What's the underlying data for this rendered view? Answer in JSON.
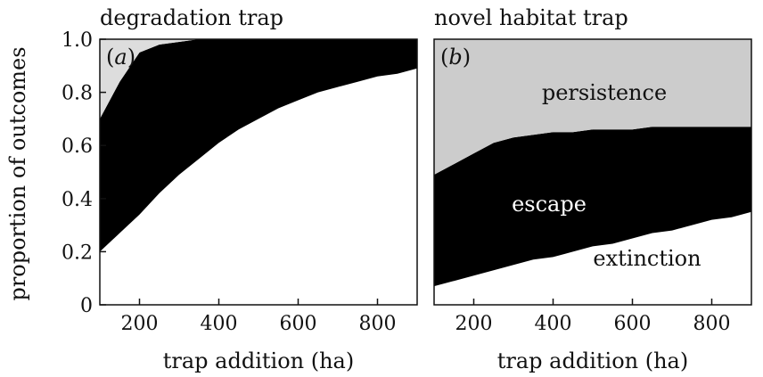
{
  "chart_data": [
    {
      "type": "area",
      "panel_label": "a",
      "title": "degradation trap",
      "xlabel": "trap addition (ha)",
      "ylabel": "proportion of outcomes",
      "xlim": [
        100,
        900
      ],
      "ylim": [
        0,
        1.0
      ],
      "x_ticks": [
        "200",
        "400",
        "600",
        "800"
      ],
      "y_ticks": [
        "0",
        "0.2",
        "0.4",
        "0.6",
        "0.8",
        "1.0"
      ],
      "x": [
        100,
        150,
        200,
        250,
        300,
        350,
        400,
        450,
        500,
        550,
        600,
        650,
        700,
        750,
        800,
        850,
        900
      ],
      "series": [
        {
          "key": "extinction",
          "label": "",
          "color": "#ffffff",
          "values": [
            0.2,
            0.27,
            0.34,
            0.42,
            0.49,
            0.55,
            0.61,
            0.66,
            0.7,
            0.74,
            0.77,
            0.8,
            0.82,
            0.84,
            0.86,
            0.87,
            0.89
          ]
        },
        {
          "key": "escape",
          "label": "",
          "color": "#000000",
          "values": [
            0.5,
            0.57,
            0.61,
            0.56,
            0.5,
            0.45,
            0.39,
            0.34,
            0.3,
            0.26,
            0.23,
            0.2,
            0.18,
            0.16,
            0.14,
            0.13,
            0.11
          ]
        },
        {
          "key": "persistence",
          "label": "",
          "color": "#dddddd",
          "values": [
            0.3,
            0.16,
            0.05,
            0.02,
            0.01,
            0.0,
            0.0,
            0.0,
            0.0,
            0.0,
            0.0,
            0.0,
            0.0,
            0.0,
            0.0,
            0.0,
            0.0
          ]
        }
      ]
    },
    {
      "type": "area",
      "panel_label": "b",
      "title": "novel habitat trap",
      "xlabel": "trap addition (ha)",
      "ylabel": "",
      "xlim": [
        100,
        900
      ],
      "ylim": [
        0,
        1.0
      ],
      "x_ticks": [
        "200",
        "400",
        "600",
        "800"
      ],
      "y_ticks": [],
      "x": [
        100,
        150,
        200,
        250,
        300,
        350,
        400,
        450,
        500,
        550,
        600,
        650,
        700,
        750,
        800,
        850,
        900
      ],
      "series": [
        {
          "key": "extinction",
          "label": "extinction",
          "color": "#ffffff",
          "values": [
            0.07,
            0.09,
            0.11,
            0.13,
            0.15,
            0.17,
            0.18,
            0.2,
            0.22,
            0.23,
            0.25,
            0.27,
            0.28,
            0.3,
            0.32,
            0.33,
            0.35
          ]
        },
        {
          "key": "escape",
          "label": "escape",
          "color": "#000000",
          "values": [
            0.42,
            0.44,
            0.46,
            0.48,
            0.48,
            0.47,
            0.47,
            0.45,
            0.44,
            0.43,
            0.41,
            0.4,
            0.39,
            0.37,
            0.35,
            0.34,
            0.32
          ]
        },
        {
          "key": "persistence",
          "label": "persistence",
          "color": "#cccccc",
          "values": [
            0.51,
            0.47,
            0.43,
            0.39,
            0.37,
            0.36,
            0.35,
            0.35,
            0.34,
            0.34,
            0.34,
            0.33,
            0.33,
            0.33,
            0.33,
            0.33,
            0.33
          ]
        }
      ]
    }
  ]
}
